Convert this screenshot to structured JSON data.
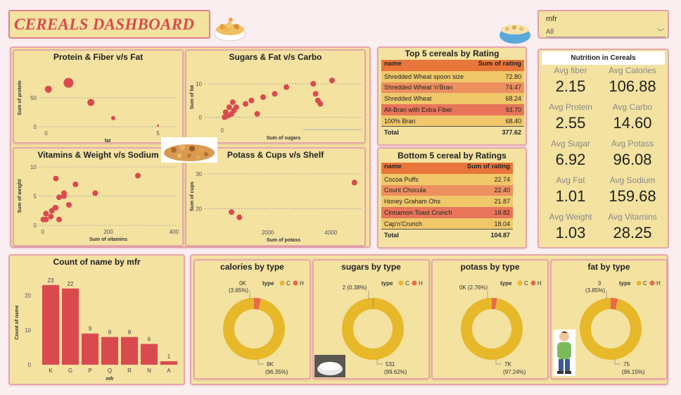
{
  "header": {
    "title": "CEREALS DASHBOARD"
  },
  "slicer": {
    "label": "mfr",
    "value": "All"
  },
  "colors": {
    "accent_red": "#d94a4f",
    "panel_bg": "#f3e2a0",
    "donut_main": "#e6b82a",
    "donut_h": "#e86a4a",
    "table_header": "#e8753a"
  },
  "nutrition": {
    "title": "Nutrition in Cereals",
    "items": [
      {
        "label": "Avg fiber",
        "value": "2.15"
      },
      {
        "label": "Avg Calories",
        "value": "106.88"
      },
      {
        "label": "Avg Protein",
        "value": "2.55"
      },
      {
        "label": "Avg Carbo",
        "value": "14.60"
      },
      {
        "label": "Avg Sugar",
        "value": "6.92"
      },
      {
        "label": "Avg Potass",
        "value": "96.08"
      },
      {
        "label": "Avg Fat",
        "value": "1.01"
      },
      {
        "label": "Avg Sodium",
        "value": "159.68"
      },
      {
        "label": "Avg Weight",
        "value": "1.03"
      },
      {
        "label": "Avg Vitamins",
        "value": "28.25"
      }
    ]
  },
  "top5": {
    "title": "Top 5 cereals by Rating",
    "col1": "name",
    "col2": "Sum of rating",
    "rows": [
      {
        "name": "Shredded Wheat spoon size",
        "value": "72.80",
        "color": "#f0c86a"
      },
      {
        "name": "Shredded Wheat 'n'Bran",
        "value": "74.47",
        "color": "#ec9060"
      },
      {
        "name": "Shredded Wheat",
        "value": "68.24",
        "color": "#f0c86a"
      },
      {
        "name": "All-Bran with Extra Fiber",
        "value": "93.70",
        "color": "#e8755a"
      },
      {
        "name": "100% Bran",
        "value": "68.40",
        "color": "#f0c86a"
      }
    ],
    "total_label": "Total",
    "total_value": "377.62"
  },
  "bottom5": {
    "title": "Bottom 5 cereal by Ratings",
    "col1": "name",
    "col2": "Sum of rating",
    "rows": [
      {
        "name": "Cocoa Puffs",
        "value": "22.74",
        "color": "#f0c86a"
      },
      {
        "name": "Count Chocula",
        "value": "22.40",
        "color": "#ec9060"
      },
      {
        "name": "Honey Graham Ohs",
        "value": "21.87",
        "color": "#f0c86a"
      },
      {
        "name": "Cinnamon Toast Crunch",
        "value": "19.82",
        "color": "#e8755a"
      },
      {
        "name": "Cap'n'Crunch",
        "value": "18.04",
        "color": "#f0c86a"
      }
    ],
    "total_label": "Total",
    "total_value": "104.87"
  },
  "chart_data": [
    {
      "type": "scatter",
      "title": "Protein & Fiber v/s Fat",
      "xlabel": "fat",
      "ylabel": "Sum of protein",
      "xlim": [
        -0.3,
        5.8
      ],
      "ylim": [
        0,
        100
      ],
      "xticks": [
        "0",
        "5"
      ],
      "yticks": [
        "0",
        "50"
      ],
      "points": [
        {
          "x": 0.1,
          "y": 65,
          "r": 5
        },
        {
          "x": 1.0,
          "y": 76,
          "r": 7
        },
        {
          "x": 2.0,
          "y": 42,
          "r": 5
        },
        {
          "x": 3.0,
          "y": 15,
          "r": 3
        },
        {
          "x": 5.0,
          "y": 2,
          "r": 1.5
        }
      ]
    },
    {
      "type": "scatter",
      "title": "Sugars & Fat v/s Carbo",
      "xlabel": "Sum of sugars",
      "ylabel": "Sum of fat",
      "xlim": [
        -15,
        120
      ],
      "ylim": [
        -2,
        14
      ],
      "xticks": [
        "0"
      ],
      "yticks": [
        "0",
        "10"
      ],
      "points": [
        {
          "x": 2,
          "y": 0
        },
        {
          "x": 5,
          "y": 0.5
        },
        {
          "x": 8,
          "y": 1
        },
        {
          "x": 3,
          "y": 1.5
        },
        {
          "x": 10,
          "y": 2
        },
        {
          "x": 6,
          "y": 3
        },
        {
          "x": 12,
          "y": 3
        },
        {
          "x": 9,
          "y": 4.5
        },
        {
          "x": 20,
          "y": 4
        },
        {
          "x": 25,
          "y": 5
        },
        {
          "x": 35,
          "y": 6
        },
        {
          "x": 45,
          "y": 7
        },
        {
          "x": 55,
          "y": 9
        },
        {
          "x": 78,
          "y": 10
        },
        {
          "x": 80,
          "y": 7
        },
        {
          "x": 82,
          "y": 5
        },
        {
          "x": 84,
          "y": 4
        },
        {
          "x": 94,
          "y": 11
        },
        {
          "x": 30,
          "y": 1
        }
      ]
    },
    {
      "type": "scatter",
      "title": "Vitamins & Weight v/s Sodium",
      "xlabel": "Sum of vitamins",
      "ylabel": "Sum of weight",
      "xlim": [
        -10,
        410
      ],
      "ylim": [
        0,
        10
      ],
      "xticks": [
        "0",
        "200",
        "400"
      ],
      "yticks": [
        "0",
        "5",
        "10"
      ],
      "points": [
        {
          "x": 2,
          "y": 1
        },
        {
          "x": 10,
          "y": 1
        },
        {
          "x": 10,
          "y": 2
        },
        {
          "x": 25,
          "y": 1.5
        },
        {
          "x": 28,
          "y": 2.5
        },
        {
          "x": 38,
          "y": 3
        },
        {
          "x": 40,
          "y": 8
        },
        {
          "x": 50,
          "y": 4.8
        },
        {
          "x": 50,
          "y": 1
        },
        {
          "x": 65,
          "y": 5
        },
        {
          "x": 65,
          "y": 5.5
        },
        {
          "x": 80,
          "y": 3.5
        },
        {
          "x": 100,
          "y": 7
        },
        {
          "x": 160,
          "y": 5.5
        },
        {
          "x": 290,
          "y": 8.5
        },
        {
          "x": 40,
          "y": 3
        }
      ]
    },
    {
      "type": "scatter",
      "title": "Potass & Cups v/s Shelf",
      "xlabel": "Sum of potass",
      "ylabel": "Sum of cups",
      "xlim": [
        0,
        5000
      ],
      "ylim": [
        15,
        32
      ],
      "xticks": [
        "2000",
        "4000"
      ],
      "yticks": [
        "20",
        "30"
      ],
      "points": [
        {
          "x": 850,
          "y": 19
        },
        {
          "x": 1100,
          "y": 17.5
        },
        {
          "x": 4750,
          "y": 27.5
        }
      ]
    },
    {
      "type": "bar",
      "title": "Count of name by mfr",
      "xlabel": "mfr",
      "ylabel": "Count of name",
      "categories": [
        "K",
        "G",
        "P",
        "Q",
        "R",
        "N",
        "A"
      ],
      "values": [
        23,
        22,
        9,
        8,
        8,
        6,
        1
      ],
      "ylim": [
        0,
        25
      ],
      "yticks": [
        0,
        10,
        20
      ]
    },
    {
      "type": "pie",
      "title": "calories by type",
      "legend_title": "type",
      "legend": [
        "C",
        "H"
      ],
      "values": [
        96.35,
        3.65
      ],
      "labels": [
        {
          "text": "8K",
          "sub": "(96.35%)"
        },
        {
          "text": "0K",
          "sub": "(3.65%)"
        }
      ]
    },
    {
      "type": "pie",
      "title": "sugars by type",
      "legend_title": "type",
      "legend": [
        "C",
        "H"
      ],
      "values": [
        99.62,
        0.38
      ],
      "labels": [
        {
          "text": "531",
          "sub": "(99.62%)"
        },
        {
          "text": "2 (0.38%)",
          "sub": ""
        }
      ]
    },
    {
      "type": "pie",
      "title": "potass by type",
      "legend_title": "type",
      "legend": [
        "C",
        "H"
      ],
      "values": [
        97.24,
        2.76
      ],
      "labels": [
        {
          "text": "7K",
          "sub": "(97.24%)"
        },
        {
          "text": "0K (2.76%)",
          "sub": ""
        }
      ]
    },
    {
      "type": "pie",
      "title": "fat by type",
      "legend_title": "type",
      "legend": [
        "C",
        "H"
      ],
      "values": [
        96.15,
        3.85
      ],
      "labels": [
        {
          "text": "75",
          "sub": "(96.15%)"
        },
        {
          "text": "3",
          "sub": "(3.85%)"
        }
      ]
    }
  ]
}
